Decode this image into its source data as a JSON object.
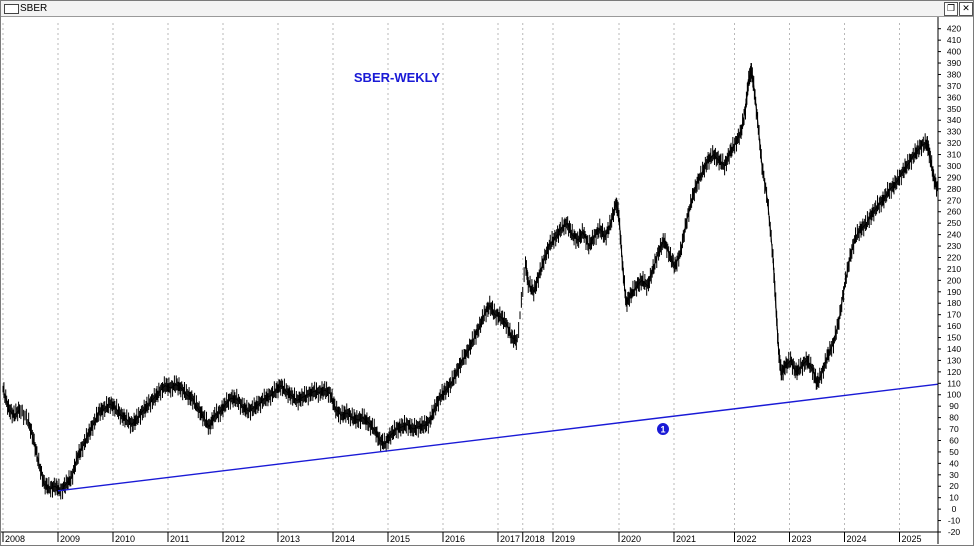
{
  "window": {
    "title": "SBER",
    "restore_glyph": "❐",
    "close_glyph": "✕",
    "icons": {
      "app": "window-icon",
      "restore": "restore-icon",
      "close": "close-icon"
    }
  },
  "chart_data": {
    "type": "line",
    "title": "SBER-WEKLY",
    "xlabel": "",
    "ylabel": "",
    "xlim": [
      2008.0,
      2025.0
    ],
    "ylim": [
      -20,
      425
    ],
    "y_ticks": [
      -20,
      -10,
      0,
      10,
      20,
      30,
      40,
      50,
      60,
      70,
      80,
      90,
      100,
      110,
      120,
      130,
      140,
      150,
      160,
      170,
      180,
      190,
      200,
      210,
      220,
      230,
      240,
      250,
      260,
      270,
      280,
      290,
      300,
      310,
      320,
      330,
      340,
      350,
      360,
      370,
      380,
      390,
      400,
      410,
      420
    ],
    "x_ticks": [
      {
        "label": "2008",
        "x": 2008.0
      },
      {
        "label": "2009",
        "x": 2009.0
      },
      {
        "label": "2010",
        "x": 2010.0
      },
      {
        "label": "2011",
        "x": 2011.0
      },
      {
        "label": "2012",
        "x": 2012.0
      },
      {
        "label": "2013",
        "x": 2013.0
      },
      {
        "label": "2014",
        "x": 2014.0
      },
      {
        "label": "2015",
        "x": 2015.0
      },
      {
        "label": "2016",
        "x": 2016.0
      },
      {
        "label": "2017",
        "x": 2017.0
      },
      {
        "label": "2018",
        "x": 2017.45
      },
      {
        "label": "2019",
        "x": 2018.0
      },
      {
        "label": "2020",
        "x": 2019.2
      },
      {
        "label": "2021",
        "x": 2020.2
      },
      {
        "label": "2022",
        "x": 2021.3
      },
      {
        "label": "2023",
        "x": 2022.3
      },
      {
        "label": "2024",
        "x": 2023.3
      },
      {
        "label": "2025",
        "x": 2024.3
      }
    ],
    "grid": "vertical dotted",
    "series": [
      {
        "color": "#000000",
        "points": [
          [
            2008.0,
            105
          ],
          [
            2008.1,
            88
          ],
          [
            2008.2,
            82
          ],
          [
            2008.3,
            87
          ],
          [
            2008.45,
            78
          ],
          [
            2008.55,
            62
          ],
          [
            2008.65,
            40
          ],
          [
            2008.75,
            22
          ],
          [
            2008.85,
            18
          ],
          [
            2008.95,
            20
          ],
          [
            2009.05,
            16
          ],
          [
            2009.15,
            22
          ],
          [
            2009.25,
            28
          ],
          [
            2009.35,
            45
          ],
          [
            2009.45,
            55
          ],
          [
            2009.55,
            65
          ],
          [
            2009.65,
            75
          ],
          [
            2009.75,
            85
          ],
          [
            2009.85,
            88
          ],
          [
            2009.95,
            92
          ],
          [
            2010.05,
            88
          ],
          [
            2010.15,
            82
          ],
          [
            2010.25,
            78
          ],
          [
            2010.35,
            74
          ],
          [
            2010.45,
            80
          ],
          [
            2010.55,
            86
          ],
          [
            2010.65,
            92
          ],
          [
            2010.75,
            97
          ],
          [
            2010.85,
            103
          ],
          [
            2010.95,
            108
          ],
          [
            2011.05,
            106
          ],
          [
            2011.15,
            109
          ],
          [
            2011.25,
            105
          ],
          [
            2011.35,
            100
          ],
          [
            2011.45,
            96
          ],
          [
            2011.55,
            88
          ],
          [
            2011.65,
            80
          ],
          [
            2011.75,
            72
          ],
          [
            2011.85,
            82
          ],
          [
            2011.95,
            85
          ],
          [
            2012.05,
            92
          ],
          [
            2012.15,
            97
          ],
          [
            2012.25,
            96
          ],
          [
            2012.35,
            90
          ],
          [
            2012.45,
            86
          ],
          [
            2012.55,
            88
          ],
          [
            2012.65,
            92
          ],
          [
            2012.75,
            96
          ],
          [
            2012.85,
            99
          ],
          [
            2012.95,
            103
          ],
          [
            2013.05,
            108
          ],
          [
            2013.15,
            103
          ],
          [
            2013.25,
            99
          ],
          [
            2013.35,
            95
          ],
          [
            2013.45,
            98
          ],
          [
            2013.55,
            100
          ],
          [
            2013.65,
            103
          ],
          [
            2013.75,
            102
          ],
          [
            2013.85,
            104
          ],
          [
            2013.95,
            101
          ],
          [
            2014.05,
            87
          ],
          [
            2014.15,
            82
          ],
          [
            2014.25,
            84
          ],
          [
            2014.35,
            80
          ],
          [
            2014.45,
            78
          ],
          [
            2014.55,
            80
          ],
          [
            2014.65,
            75
          ],
          [
            2014.75,
            70
          ],
          [
            2014.85,
            60
          ],
          [
            2014.95,
            57
          ],
          [
            2015.05,
            65
          ],
          [
            2015.15,
            70
          ],
          [
            2015.25,
            72
          ],
          [
            2015.35,
            74
          ],
          [
            2015.45,
            70
          ],
          [
            2015.55,
            72
          ],
          [
            2015.65,
            73
          ],
          [
            2015.75,
            76
          ],
          [
            2015.85,
            88
          ],
          [
            2015.95,
            98
          ],
          [
            2016.05,
            104
          ],
          [
            2016.15,
            110
          ],
          [
            2016.25,
            120
          ],
          [
            2016.35,
            130
          ],
          [
            2016.45,
            138
          ],
          [
            2016.55,
            148
          ],
          [
            2016.65,
            158
          ],
          [
            2016.75,
            170
          ],
          [
            2016.85,
            178
          ],
          [
            2016.95,
            170
          ],
          [
            2017.05,
            168
          ],
          [
            2017.15,
            162
          ],
          [
            2017.25,
            150
          ],
          [
            2017.35,
            147
          ],
          [
            2017.5,
            215
          ],
          [
            2017.55,
            198
          ],
          [
            2017.65,
            190
          ],
          [
            2017.75,
            205
          ],
          [
            2017.85,
            220
          ],
          [
            2017.95,
            232
          ],
          [
            2018.05,
            238
          ],
          [
            2018.15,
            245
          ],
          [
            2018.25,
            250
          ],
          [
            2018.35,
            240
          ],
          [
            2018.45,
            235
          ],
          [
            2018.55,
            242
          ],
          [
            2018.65,
            230
          ],
          [
            2018.75,
            238
          ],
          [
            2018.85,
            245
          ],
          [
            2018.95,
            238
          ],
          [
            2019.05,
            250
          ],
          [
            2019.15,
            268
          ],
          [
            2019.2,
            255
          ],
          [
            2019.27,
            210
          ],
          [
            2019.33,
            180
          ],
          [
            2019.42,
            188
          ],
          [
            2019.52,
            195
          ],
          [
            2019.62,
            200
          ],
          [
            2019.72,
            195
          ],
          [
            2019.82,
            210
          ],
          [
            2019.92,
            225
          ],
          [
            2020.02,
            235
          ],
          [
            2020.12,
            222
          ],
          [
            2020.22,
            212
          ],
          [
            2020.32,
            225
          ],
          [
            2020.42,
            250
          ],
          [
            2020.52,
            270
          ],
          [
            2020.62,
            285
          ],
          [
            2020.72,
            295
          ],
          [
            2020.82,
            305
          ],
          [
            2020.92,
            310
          ],
          [
            2021.02,
            305
          ],
          [
            2021.12,
            300
          ],
          [
            2021.22,
            312
          ],
          [
            2021.32,
            320
          ],
          [
            2021.42,
            330
          ],
          [
            2021.5,
            350
          ],
          [
            2021.55,
            372
          ],
          [
            2021.6,
            385
          ],
          [
            2021.65,
            370
          ],
          [
            2021.72,
            340
          ],
          [
            2021.8,
            300
          ],
          [
            2021.9,
            270
          ],
          [
            2022.0,
            220
          ],
          [
            2022.05,
            180
          ],
          [
            2022.1,
            140
          ],
          [
            2022.15,
            118
          ],
          [
            2022.22,
            125
          ],
          [
            2022.32,
            130
          ],
          [
            2022.42,
            120
          ],
          [
            2022.52,
            125
          ],
          [
            2022.62,
            130
          ],
          [
            2022.72,
            122
          ],
          [
            2022.8,
            110
          ],
          [
            2022.9,
            120
          ],
          [
            2023.0,
            135
          ],
          [
            2023.1,
            145
          ],
          [
            2023.2,
            165
          ],
          [
            2023.3,
            195
          ],
          [
            2023.4,
            220
          ],
          [
            2023.5,
            238
          ],
          [
            2023.6,
            245
          ],
          [
            2023.7,
            250
          ],
          [
            2023.8,
            258
          ],
          [
            2023.9,
            265
          ],
          [
            2024.0,
            270
          ],
          [
            2024.1,
            278
          ],
          [
            2024.2,
            283
          ],
          [
            2024.3,
            290
          ],
          [
            2024.4,
            298
          ],
          [
            2024.5,
            305
          ],
          [
            2024.6,
            312
          ],
          [
            2024.7,
            318
          ],
          [
            2024.8,
            320
          ],
          [
            2024.85,
            310
          ],
          [
            2024.92,
            290
          ],
          [
            2025.0,
            278
          ]
        ]
      }
    ],
    "trendline": {
      "color": "#1a1ad6",
      "from": [
        2009.0,
        16
      ],
      "to": [
        2025.3,
        111
      ]
    },
    "annotations": [
      {
        "text": "1",
        "x": 2020.0,
        "y": 70,
        "color": "#1a1ad6"
      }
    ]
  }
}
